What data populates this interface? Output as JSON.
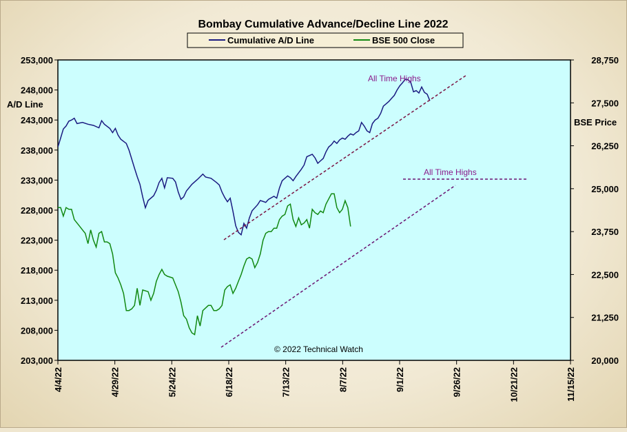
{
  "chart_data": {
    "type": "line",
    "title": "Bombay Cumulative Advance/Decline Line 2022",
    "ylabel_left": "A/D Line",
    "ylabel_right": "BSE Price",
    "y_left_range": [
      203000,
      253000
    ],
    "y_right_range": [
      20000,
      28750
    ],
    "y_left_ticks": [
      "253,000",
      "248,000",
      "243,000",
      "238,000",
      "233,000",
      "228,000",
      "223,000",
      "218,000",
      "213,000",
      "208,000",
      "203,000"
    ],
    "y_right_ticks": [
      "28,750",
      "27,500",
      "26,250",
      "25,000",
      "23,750",
      "22,500",
      "21,250",
      "20,000"
    ],
    "x_ticks": [
      "4/4/22",
      "4/29/22",
      "5/24/22",
      "6/18/22",
      "7/13/22",
      "8/7/22",
      "9/1/22",
      "9/26/22",
      "10/21/22",
      "11/15/22"
    ],
    "legend": [
      "Cumulative A/D Line",
      "BSE 500 Close"
    ],
    "legend_position": "top-center",
    "grid": false,
    "copyright": "© 2022 Technical Watch",
    "annotations": [
      "All Time Highs",
      "All Time Highs"
    ],
    "series": [
      {
        "name": "Cumulative A/D Line",
        "color": "#1a1a80",
        "axis": "left",
        "points": [
          [
            0,
            238500
          ],
          [
            1,
            240000
          ],
          [
            2,
            241500
          ],
          [
            3,
            242000
          ],
          [
            4,
            242800
          ],
          [
            5,
            243000
          ],
          [
            6,
            243300
          ],
          [
            7,
            242400
          ],
          [
            9,
            242600
          ],
          [
            11,
            242300
          ],
          [
            13,
            242100
          ],
          [
            15,
            241700
          ],
          [
            16,
            242900
          ],
          [
            17,
            242300
          ],
          [
            19,
            241600
          ],
          [
            20,
            240900
          ],
          [
            21,
            241600
          ],
          [
            22,
            240500
          ],
          [
            23,
            239800
          ],
          [
            25,
            239100
          ],
          [
            26,
            238000
          ],
          [
            27,
            236500
          ],
          [
            28,
            235000
          ],
          [
            29,
            233600
          ],
          [
            30,
            232300
          ],
          [
            31,
            230200
          ],
          [
            32,
            228400
          ],
          [
            33,
            229600
          ],
          [
            35,
            230400
          ],
          [
            36,
            231300
          ],
          [
            37,
            232600
          ],
          [
            38,
            233300
          ],
          [
            39,
            231700
          ],
          [
            40,
            233400
          ],
          [
            42,
            233300
          ],
          [
            43,
            232700
          ],
          [
            44,
            231000
          ],
          [
            45,
            229800
          ],
          [
            46,
            230200
          ],
          [
            47,
            231200
          ],
          [
            49,
            232300
          ],
          [
            51,
            233100
          ],
          [
            53,
            234000
          ],
          [
            54,
            233500
          ],
          [
            56,
            233300
          ],
          [
            58,
            232600
          ],
          [
            59,
            232200
          ],
          [
            60,
            231000
          ],
          [
            61,
            230100
          ],
          [
            62,
            229400
          ],
          [
            63,
            230000
          ],
          [
            64,
            227800
          ],
          [
            65,
            225400
          ],
          [
            66,
            224300
          ],
          [
            67,
            223900
          ],
          [
            68,
            225800
          ],
          [
            69,
            225000
          ],
          [
            70,
            226700
          ],
          [
            71,
            227900
          ],
          [
            73,
            228900
          ],
          [
            74,
            229600
          ],
          [
            76,
            229300
          ],
          [
            77,
            229800
          ],
          [
            79,
            230300
          ],
          [
            80,
            230000
          ],
          [
            81,
            231700
          ],
          [
            82,
            232900
          ],
          [
            83,
            233300
          ],
          [
            84,
            233700
          ],
          [
            85,
            233400
          ],
          [
            86,
            232900
          ],
          [
            87,
            233600
          ],
          [
            89,
            234800
          ],
          [
            90,
            235500
          ],
          [
            91,
            236900
          ],
          [
            93,
            237300
          ],
          [
            94,
            236700
          ],
          [
            95,
            235800
          ],
          [
            96,
            236200
          ],
          [
            97,
            236600
          ],
          [
            98,
            237700
          ],
          [
            99,
            238500
          ],
          [
            100,
            238900
          ],
          [
            101,
            239500
          ],
          [
            102,
            239100
          ],
          [
            103,
            239700
          ],
          [
            104,
            240000
          ],
          [
            105,
            239800
          ],
          [
            106,
            240300
          ],
          [
            107,
            240700
          ],
          [
            108,
            240500
          ],
          [
            109,
            240900
          ],
          [
            110,
            241200
          ],
          [
            111,
            242600
          ],
          [
            112,
            242000
          ],
          [
            113,
            241200
          ],
          [
            114,
            240900
          ],
          [
            115,
            242400
          ],
          [
            116,
            243000
          ],
          [
            117,
            243300
          ],
          [
            118,
            244100
          ],
          [
            119,
            245300
          ],
          [
            120,
            245700
          ],
          [
            121,
            246100
          ],
          [
            122,
            246600
          ],
          [
            123,
            247100
          ],
          [
            124,
            248000
          ],
          [
            125,
            248700
          ],
          [
            126,
            249200
          ],
          [
            127,
            249800
          ],
          [
            128,
            249700
          ],
          [
            129,
            249300
          ],
          [
            130,
            247700
          ],
          [
            131,
            247900
          ],
          [
            132,
            247500
          ],
          [
            133,
            248500
          ],
          [
            134,
            247600
          ],
          [
            135,
            247300
          ],
          [
            136,
            246200
          ]
        ]
      },
      {
        "name": "BSE 500 Close",
        "color": "#118811",
        "axis": "right",
        "points": [
          [
            0,
            24450
          ],
          [
            1,
            24450
          ],
          [
            2,
            24200
          ],
          [
            3,
            24450
          ],
          [
            4,
            24400
          ],
          [
            5,
            24400
          ],
          [
            6,
            24100
          ],
          [
            7,
            24000
          ],
          [
            8,
            23900
          ],
          [
            9,
            23800
          ],
          [
            10,
            23700
          ],
          [
            11,
            23400
          ],
          [
            12,
            23800
          ],
          [
            13,
            23500
          ],
          [
            14,
            23300
          ],
          [
            15,
            23700
          ],
          [
            16,
            23750
          ],
          [
            17,
            23450
          ],
          [
            18,
            23450
          ],
          [
            19,
            23400
          ],
          [
            20,
            23100
          ],
          [
            21,
            22550
          ],
          [
            22,
            22400
          ],
          [
            23,
            22200
          ],
          [
            24,
            21950
          ],
          [
            25,
            21450
          ],
          [
            26,
            21450
          ],
          [
            27,
            21500
          ],
          [
            28,
            21600
          ],
          [
            29,
            22100
          ],
          [
            30,
            21600
          ],
          [
            31,
            22050
          ],
          [
            33,
            22000
          ],
          [
            34,
            21750
          ],
          [
            35,
            21950
          ],
          [
            36,
            22300
          ],
          [
            37,
            22500
          ],
          [
            38,
            22650
          ],
          [
            39,
            22500
          ],
          [
            40,
            22450
          ],
          [
            42,
            22400
          ],
          [
            43,
            22200
          ],
          [
            44,
            22000
          ],
          [
            45,
            21700
          ],
          [
            46,
            21300
          ],
          [
            47,
            21200
          ],
          [
            48,
            20950
          ],
          [
            49,
            20800
          ],
          [
            50,
            20750
          ],
          [
            51,
            21300
          ],
          [
            52,
            21000
          ],
          [
            53,
            21450
          ],
          [
            55,
            21600
          ],
          [
            56,
            21600
          ],
          [
            57,
            21450
          ],
          [
            58,
            21450
          ],
          [
            59,
            21500
          ],
          [
            60,
            21600
          ],
          [
            61,
            22050
          ],
          [
            62,
            22150
          ],
          [
            63,
            22200
          ],
          [
            64,
            21950
          ],
          [
            65,
            22100
          ],
          [
            66,
            22300
          ],
          [
            67,
            22500
          ],
          [
            68,
            22750
          ],
          [
            69,
            22950
          ],
          [
            70,
            23000
          ],
          [
            71,
            22950
          ],
          [
            72,
            22700
          ],
          [
            73,
            22850
          ],
          [
            74,
            23100
          ],
          [
            75,
            23500
          ],
          [
            76,
            23700
          ],
          [
            77,
            23750
          ],
          [
            78,
            23750
          ],
          [
            79,
            23850
          ],
          [
            80,
            23850
          ],
          [
            81,
            24100
          ],
          [
            82,
            24200
          ],
          [
            83,
            24250
          ],
          [
            84,
            24500
          ],
          [
            85,
            24550
          ],
          [
            86,
            24100
          ],
          [
            87,
            23900
          ],
          [
            88,
            24150
          ],
          [
            89,
            23950
          ],
          [
            90,
            24000
          ],
          [
            91,
            24100
          ],
          [
            92,
            23850
          ],
          [
            93,
            24400
          ],
          [
            94,
            24300
          ],
          [
            95,
            24250
          ],
          [
            96,
            24350
          ],
          [
            97,
            24300
          ],
          [
            98,
            24550
          ],
          [
            99,
            24700
          ],
          [
            100,
            24850
          ],
          [
            101,
            24850
          ],
          [
            102,
            24450
          ],
          [
            103,
            24300
          ],
          [
            104,
            24400
          ],
          [
            105,
            24650
          ],
          [
            106,
            24450
          ],
          [
            107,
            23900
          ]
        ]
      }
    ]
  }
}
